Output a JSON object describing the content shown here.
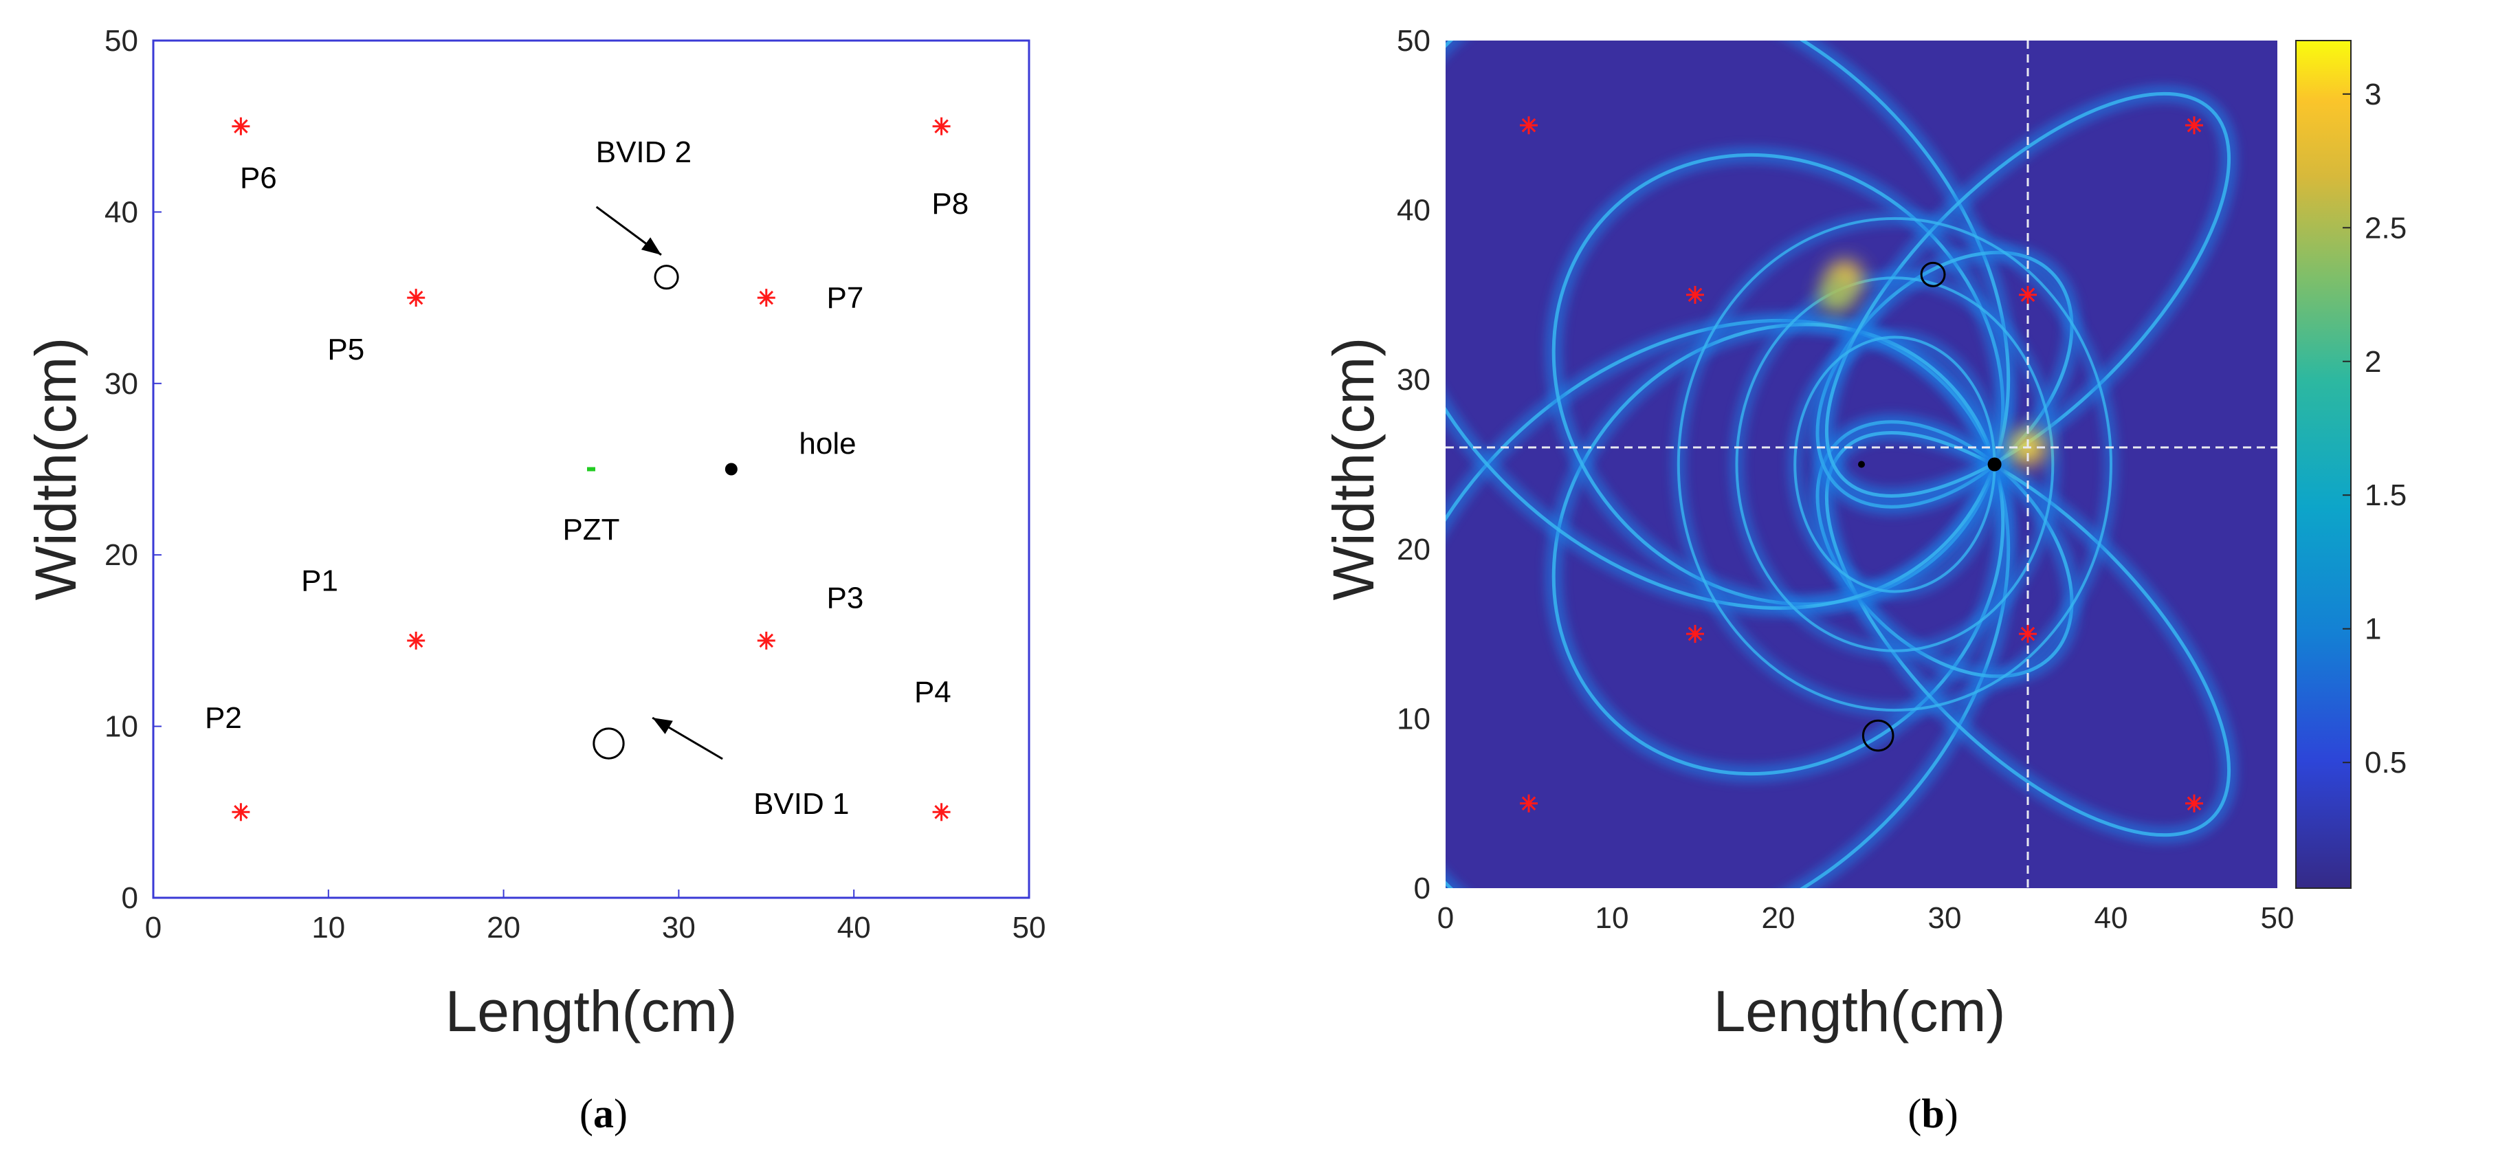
{
  "colors": {
    "marker_red": "#ff1a1a",
    "pzt_green": "#22cc22",
    "frame_blue": "#3a3ad6",
    "heat_bg": "#3a2fa0",
    "ellipse": "#1f7fe6"
  },
  "chart_data": [
    {
      "type": "scatter",
      "panel": "a",
      "caption": "a",
      "xlabel": "Length(cm)",
      "ylabel": "Width(cm)",
      "xlim": [
        0,
        50
      ],
      "ylim": [
        0,
        50
      ],
      "xticks": [
        "0",
        "10",
        "20",
        "30",
        "40",
        "50"
      ],
      "yticks": [
        "0",
        "10",
        "20",
        "30",
        "40",
        "50"
      ],
      "grid": false,
      "points": [
        {
          "name": "P1",
          "x": 15,
          "y": 15,
          "lx": 9.5,
          "ly": 18.5
        },
        {
          "name": "P2",
          "x": 5,
          "y": 5,
          "lx": 4,
          "ly": 10.5
        },
        {
          "name": "P3",
          "x": 35,
          "y": 15,
          "lx": 39.5,
          "ly": 17.5
        },
        {
          "name": "P4",
          "x": 45,
          "y": 5,
          "lx": 44.5,
          "ly": 12
        },
        {
          "name": "P5",
          "x": 15,
          "y": 35,
          "lx": 11,
          "ly": 32
        },
        {
          "name": "P6",
          "x": 5,
          "y": 45,
          "lx": 6,
          "ly": 42
        },
        {
          "name": "P7",
          "x": 35,
          "y": 35,
          "lx": 39.5,
          "ly": 35
        },
        {
          "name": "P8",
          "x": 45,
          "y": 45,
          "lx": 45.5,
          "ly": 40.5
        }
      ],
      "pzt": {
        "label": "PZT",
        "x": 25,
        "y": 25,
        "lx": 25,
        "ly": 21.5
      },
      "hole": {
        "label": "hole",
        "x": 33,
        "y": 25,
        "lx": 38.5,
        "ly": 26.5
      },
      "bvid": [
        {
          "label": "BVID 2",
          "x": 29.3,
          "y": 36.2,
          "r": 0.65,
          "lx": 28,
          "ly": 43.5,
          "ax1": 25.3,
          "ay1": 40.3,
          "ax2": 29,
          "ay2": 37.5
        },
        {
          "label": "BVID 1",
          "x": 26,
          "y": 9,
          "r": 0.85,
          "lx": 37,
          "ly": 5.5,
          "ax1": 32.5,
          "ay1": 8.1,
          "ax2": 28.5,
          "ay2": 10.5
        }
      ]
    },
    {
      "type": "heatmap",
      "panel": "b",
      "caption": "b",
      "xlabel": "Length(cm)",
      "ylabel": "Width(cm)",
      "xlim": [
        0,
        50
      ],
      "ylim": [
        0,
        50
      ],
      "xticks": [
        "0",
        "10",
        "20",
        "30",
        "40",
        "50"
      ],
      "yticks": [
        "0",
        "10",
        "20",
        "30",
        "40",
        "50"
      ],
      "colorbar": {
        "min": 0.03,
        "max": 3.2,
        "ticks": [
          "0.5",
          "1",
          "1.5",
          "2",
          "2.5",
          "3"
        ],
        "values": [
          0.5,
          1,
          1.5,
          2,
          2.5,
          3
        ]
      },
      "sensors": [
        [
          5,
          5
        ],
        [
          15,
          15
        ],
        [
          35,
          15
        ],
        [
          45,
          5
        ],
        [
          15,
          35
        ],
        [
          5,
          45
        ],
        [
          35,
          35
        ],
        [
          45,
          45
        ]
      ],
      "pzt": [
        25,
        25
      ],
      "hole": [
        33,
        25
      ],
      "bvid": [
        [
          29.3,
          36.2,
          0.7
        ],
        [
          26,
          9,
          0.9
        ]
      ],
      "hotspots": [
        [
          35,
          26,
          3.0
        ],
        [
          24,
          36,
          2.7
        ],
        [
          23.5,
          35,
          2.3
        ]
      ],
      "crosshair": {
        "x": 35,
        "y": 26
      }
    }
  ]
}
